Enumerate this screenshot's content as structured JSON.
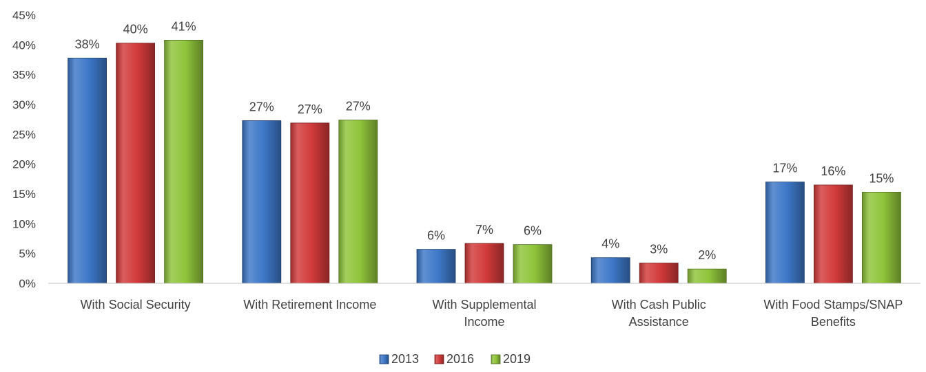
{
  "chart_data": {
    "type": "bar",
    "title": "",
    "xlabel": "",
    "ylabel": "",
    "ylim": [
      0,
      45
    ],
    "yticks": [
      "0%",
      "5%",
      "10%",
      "15%",
      "20%",
      "25%",
      "30%",
      "35%",
      "40%",
      "45%"
    ],
    "grid": false,
    "legend_position": "bottom",
    "categories": [
      [
        "With Social Security"
      ],
      [
        "With Retirement Income"
      ],
      [
        "With Supplemental",
        "Income"
      ],
      [
        "With Cash Public",
        "Assistance"
      ],
      [
        "With Food Stamps/SNAP",
        "Benefits"
      ]
    ],
    "series": [
      {
        "name": "2013",
        "color": "#3d78c8",
        "values": [
          37.8,
          27.3,
          5.7,
          4.3,
          17.0
        ],
        "labels": [
          "38%",
          "27%",
          "6%",
          "4%",
          "17%"
        ]
      },
      {
        "name": "2016",
        "color": "#d23a3a",
        "values": [
          40.3,
          26.9,
          6.7,
          3.4,
          16.5
        ],
        "labels": [
          "40%",
          "27%",
          "7%",
          "3%",
          "16%"
        ]
      },
      {
        "name": "2019",
        "color": "#8fc43a",
        "values": [
          40.8,
          27.4,
          6.5,
          2.4,
          15.3
        ],
        "labels": [
          "41%",
          "27%",
          "6%",
          "2%",
          "15%"
        ]
      }
    ]
  }
}
